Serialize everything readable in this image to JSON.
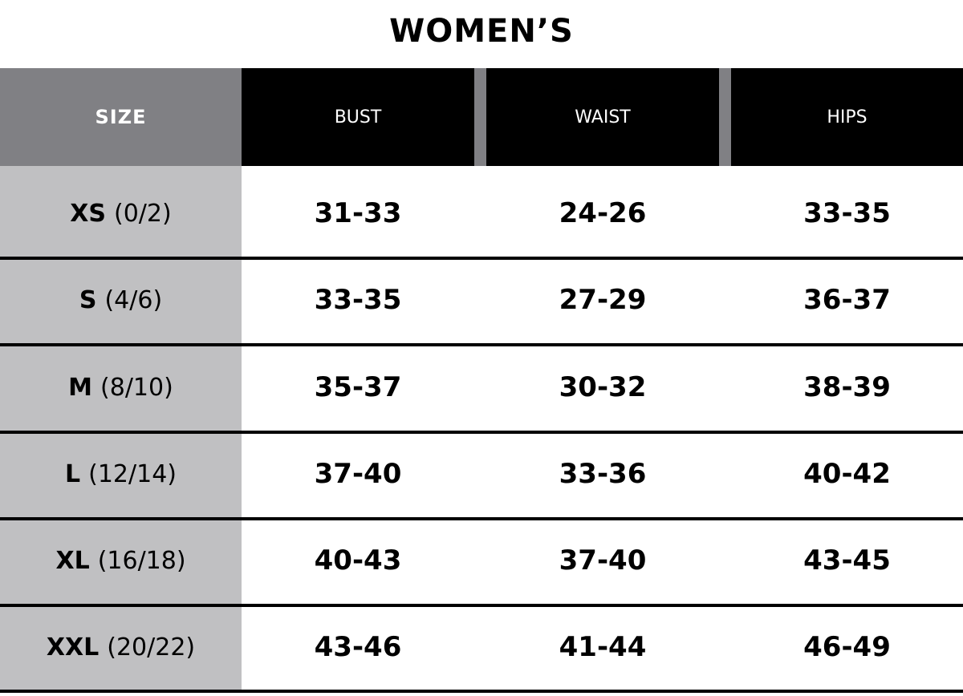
{
  "title": "WOMEN’S",
  "headers": {
    "size": "SIZE",
    "bust": "BUST",
    "waist": "WAIST",
    "hips": "HIPS"
  },
  "rows": [
    {
      "size": "XS",
      "numeric": "(0/2)",
      "bust": "31-33",
      "waist": "24-26",
      "hips": "33-35"
    },
    {
      "size": "S",
      "numeric": "(4/6)",
      "bust": "33-35",
      "waist": "27-29",
      "hips": "36-37"
    },
    {
      "size": "M",
      "numeric": "(8/10)",
      "bust": "35-37",
      "waist": "30-32",
      "hips": "38-39"
    },
    {
      "size": "L",
      "numeric": "(12/14)",
      "bust": "37-40",
      "waist": "33-36",
      "hips": "40-42"
    },
    {
      "size": "XL",
      "numeric": "(16/18)",
      "bust": "40-43",
      "waist": "37-40",
      "hips": "43-45"
    },
    {
      "size": "XXL",
      "numeric": "(20/22)",
      "bust": "43-46",
      "waist": "41-44",
      "hips": "46-49"
    }
  ],
  "colors": {
    "header_black": "#000000",
    "size_header_gray": "#808084",
    "size_column_gray": "#c0c0c2"
  }
}
